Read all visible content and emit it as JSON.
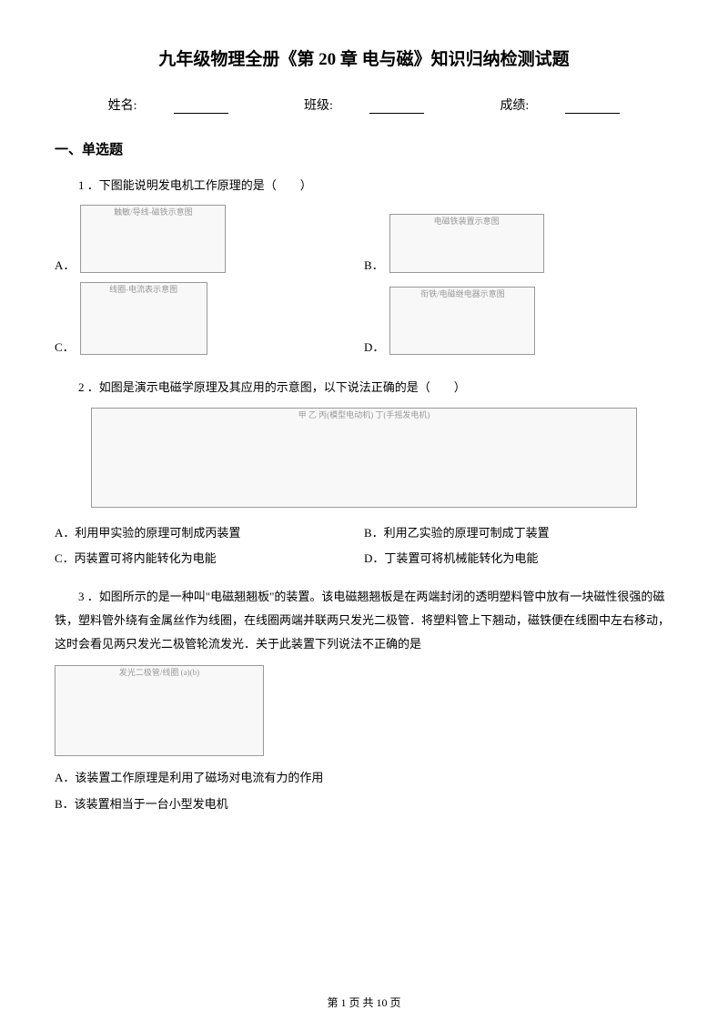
{
  "title": "九年级物理全册《第 20 章 电与磁》知识归纳检测试题",
  "info": {
    "name_label": "姓名:",
    "class_label": "班级:",
    "score_label": "成绩:"
  },
  "section1": {
    "heading": "一、单选题",
    "q1": {
      "text": "1 ．下图能说明发电机工作原理的是（　　）",
      "optA": "A．",
      "optB": "B．",
      "optC": "C．",
      "optD": "D．",
      "imgA_alt": "触敏/导线-磁铁示意图",
      "imgB_alt": "电磁铁装置示意图",
      "imgC_alt": "线圈-电流表示意图",
      "imgD_alt": "衔铁/电磁继电器示意图"
    },
    "q2": {
      "text": "2 ．如图是演示电磁学原理及其应用的示意图，以下说法正确的是（　　）",
      "img_alt": "甲 乙 丙(模型电动机) 丁(手摇发电机)",
      "optA": "A．利用甲实验的原理可制成丙装置",
      "optB": "B．利用乙实验的原理可制成丁装置",
      "optC": "C．丙装置可将内能转化为电能",
      "optD": "D．丁装置可将机械能转化为电能"
    },
    "q3": {
      "text_indent": "3 ．",
      "text_body": "如图所示的是一种叫\"电磁翘翘板\"的装置。该电磁翘翘板是在两端封闭的透明塑料管中放有一块磁性很强的磁铁，塑料管外绕有金属丝作为线圈，在线圈两端并联两只发光二极管．将塑料管上下翘动，磁铁便在线圈中左右移动，这时会看见两只发光二极管轮流发光．关于此装置下列说法不正确的是",
      "img_alt": "发光二极管/线圈 (a)(b)",
      "optA": "A．该装置工作原理是利用了磁场对电流有力的作用",
      "optB": "B．该装置相当于一台小型发电机"
    }
  },
  "footer": {
    "prefix": "第 ",
    "page": "1",
    "mid": " 页 共 ",
    "total": "10",
    "suffix": " 页"
  }
}
